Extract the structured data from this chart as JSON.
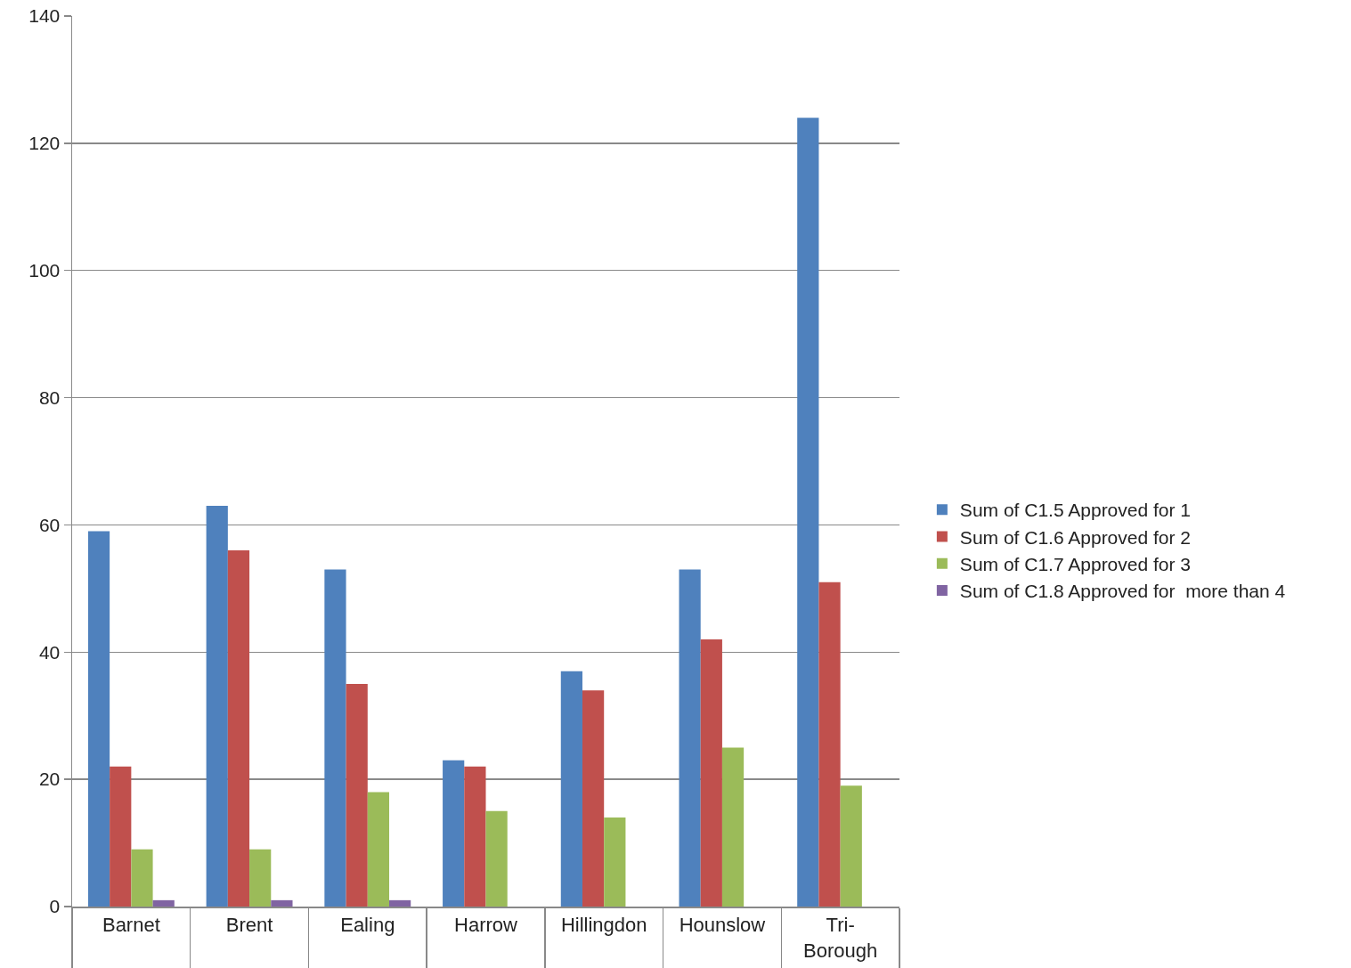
{
  "chart_data": {
    "type": "bar",
    "categories": [
      "Barnet",
      "Brent",
      "Ealing",
      "Harrow",
      "Hillingdon",
      "Hounslow",
      "Tri-Borough"
    ],
    "series": [
      {
        "name": "Sum of C1.5 Approved for 1",
        "color": "#4f81bd",
        "values": [
          59,
          63,
          53,
          23,
          37,
          53,
          124
        ]
      },
      {
        "name": "Sum of C1.6 Approved for 2",
        "color": "#c0504d",
        "values": [
          22,
          56,
          35,
          22,
          34,
          42,
          51
        ]
      },
      {
        "name": "Sum of C1.7 Approved for 3",
        "color": "#9bbb59",
        "values": [
          9,
          9,
          18,
          15,
          14,
          25,
          19
        ]
      },
      {
        "name": "Sum of C1.8 Approved for  more than 4",
        "color": "#8064a2",
        "values": [
          1,
          1,
          1,
          null,
          null,
          null,
          null
        ]
      }
    ],
    "ylim": [
      0,
      140
    ],
    "yticks": [
      0,
      20,
      40,
      60,
      80,
      100,
      120,
      140
    ],
    "grid": "y",
    "legend": "right"
  }
}
